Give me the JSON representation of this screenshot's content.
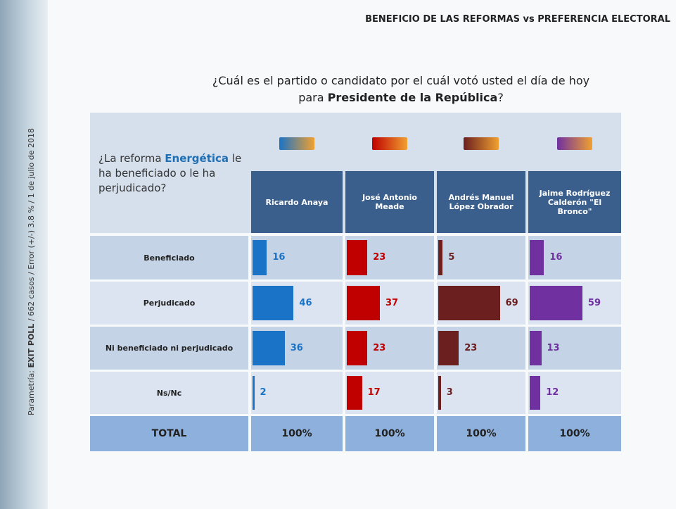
{
  "header": {
    "title": "BENEFICIO DE LAS REFORMAS vs PREFERENCIA ELECTORAL",
    "question": {
      "before": "¿Cuál es el partido o candidato por el cuál votó usted el día de hoy para ",
      "bold": "Presidente de la República",
      "after": "?"
    }
  },
  "sidebar": {
    "before": "Parametría; ",
    "bold": "EXIT POLL",
    "after": " / 662 casos / Error (+/-) 3.8 % / 1 de julio de 2018"
  },
  "table": {
    "corner": {
      "before": "¿La reforma ",
      "highlight": "Energética",
      "after": " le ha beneficiado o le ha perjudicado?"
    },
    "columns": [
      {
        "name": "Ricardo Anaya",
        "color": "#1a73c7"
      },
      {
        "name": "José Antonio Meade",
        "color": "#c00000"
      },
      {
        "name": "Andrés Manuel López Obrador",
        "color": "#6b1f1f"
      },
      {
        "name": "Jaime Rodríguez Calderón \"El Bronco\"",
        "color": "#7030a0"
      }
    ],
    "rows": [
      {
        "label": "Beneficiado",
        "values": [
          16,
          23,
          5,
          16
        ]
      },
      {
        "label": "Perjudicado",
        "values": [
          46,
          37,
          69,
          59
        ]
      },
      {
        "label": "Ni beneficiado ni perjudicado",
        "values": [
          36,
          23,
          23,
          13
        ]
      },
      {
        "label": "Ns/Nc",
        "values": [
          2,
          17,
          3,
          12
        ]
      }
    ],
    "total": {
      "label": "TOTAL",
      "values": [
        "100%",
        "100%",
        "100%",
        "100%"
      ]
    }
  }
}
